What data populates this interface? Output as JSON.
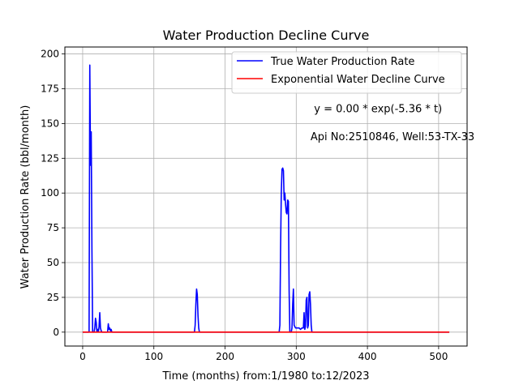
{
  "chart_data": {
    "type": "line",
    "title": "Water Production Decline Curve",
    "xlabel": "Time (months) from:1/1980 to:12/2023",
    "ylabel": "Water Production Rate (bbl/month)",
    "xlim": [
      -25,
      540
    ],
    "ylim": [
      -10,
      205
    ],
    "xticks": [
      0,
      100,
      200,
      300,
      400,
      500
    ],
    "yticks": [
      0,
      25,
      50,
      75,
      100,
      125,
      150,
      175,
      200
    ],
    "grid": true,
    "legend_position": "top-right",
    "series": [
      {
        "name": "True Water Production Rate",
        "color": "#0000ff",
        "x": [
          0,
          9,
          10,
          11,
          12,
          13,
          14,
          15,
          16,
          17,
          18,
          19,
          20,
          21,
          22,
          23,
          24,
          25,
          26,
          27,
          28,
          29,
          30,
          35,
          36,
          37,
          38,
          39,
          40,
          41,
          42,
          43,
          157,
          158,
          159,
          160,
          161,
          162,
          163,
          164,
          276,
          277,
          278,
          279,
          280,
          281,
          282,
          283,
          284,
          285,
          286,
          287,
          288,
          289,
          290,
          291,
          292,
          293,
          294,
          295,
          296,
          297,
          298,
          299,
          300,
          302,
          304,
          306,
          308,
          310,
          311,
          312,
          313,
          314,
          315,
          316,
          317,
          318,
          319,
          320,
          321,
          322,
          323,
          515
        ],
        "y": [
          0,
          0,
          192,
          120,
          144,
          60,
          0,
          0,
          0,
          3,
          10,
          7,
          0,
          2,
          0,
          4,
          14,
          3,
          1,
          0,
          0,
          0,
          0,
          0,
          6,
          2,
          3,
          1,
          2,
          0,
          0,
          0,
          0,
          5,
          20,
          31,
          27,
          12,
          3,
          0,
          0,
          5,
          60,
          100,
          117,
          118,
          116,
          95,
          100,
          92,
          86,
          85,
          95,
          94,
          30,
          0,
          0,
          0,
          3,
          20,
          31,
          5,
          4,
          3,
          3,
          3,
          3,
          2,
          3,
          3,
          14,
          2,
          4,
          23,
          25,
          3,
          5,
          27,
          29,
          20,
          5,
          0,
          0,
          0
        ]
      },
      {
        "name": "Exponential Water Decline Curve",
        "color": "#ff0000",
        "x": [
          0,
          515
        ],
        "y": [
          0,
          0
        ]
      }
    ],
    "annotations": [
      {
        "text": "y = 0.00 * exp(-5.36 * t)",
        "x": 325,
        "y": 158
      },
      {
        "text": "Api No:2510846, Well:53-TX-33",
        "x": 320,
        "y": 138
      }
    ]
  }
}
